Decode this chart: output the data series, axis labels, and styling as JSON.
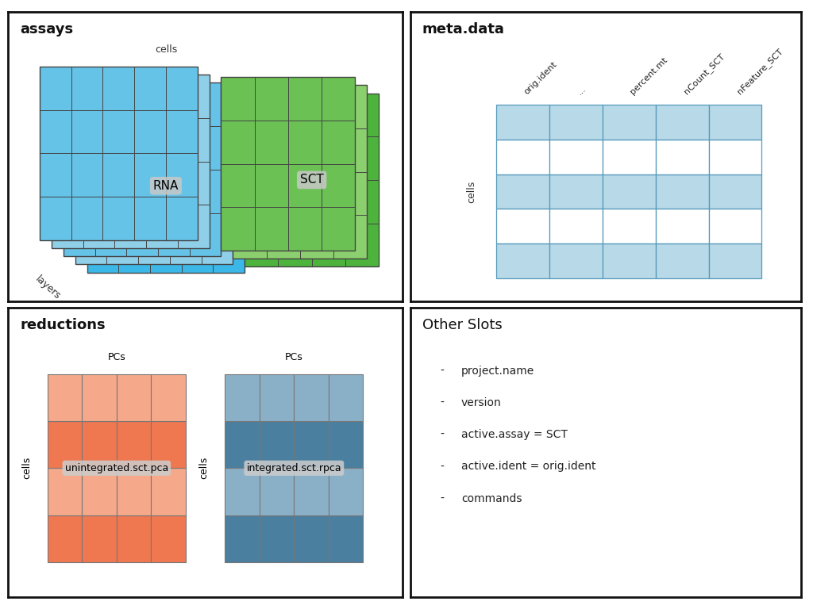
{
  "panel_bg": "#ffffff",
  "border_color": "#111111",
  "assays_label": "assays",
  "meta_label": "meta.data",
  "reductions_label": "reductions",
  "other_label": "Other Slots",
  "rna_color": "#3bb8e8",
  "rna_light_color": "#90cfe8",
  "rna_label": "RNA",
  "sct_color": "#4db33d",
  "sct_light_color": "#8ccf6e",
  "sct_label": "SCT",
  "meta_color": "#b8d9e8",
  "meta_cols": [
    "orig.ident",
    "...",
    "percent.mt",
    "nCount_SCT",
    "nFeature_SCT"
  ],
  "pca_orange": "#f07850",
  "pca_orange_light": "#f5a88a",
  "pca_label": "unintegrated.sct.pca",
  "rpca_blue": "#4a7fa0",
  "rpca_light": "#8ab0c8",
  "rpca_label": "integrated.sct.rpca",
  "other_items": [
    "project.name",
    "version",
    "active.assay = SCT",
    "active.ident = orig.ident",
    "commands"
  ]
}
